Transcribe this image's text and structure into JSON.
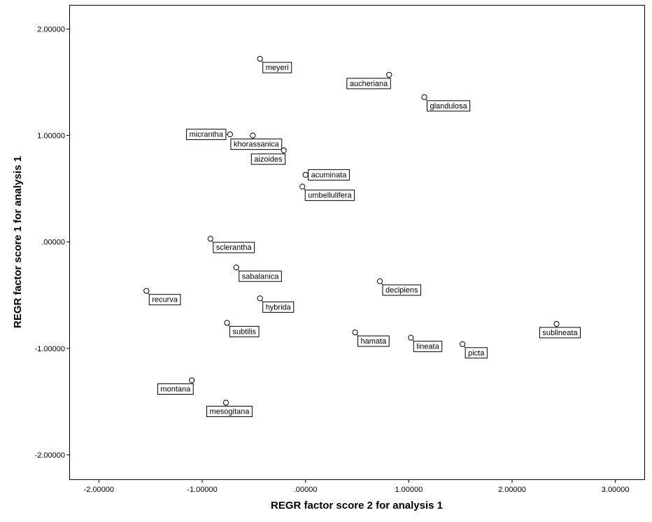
{
  "chart_data": {
    "type": "scatter",
    "title": "",
    "xlabel": "REGR factor score   2 for analysis 1",
    "ylabel": "REGR factor score   1 for analysis 1",
    "xlim": [
      -2.28,
      3.28
    ],
    "ylim": [
      -2.23,
      2.22
    ],
    "xticks": [
      -2,
      -1,
      0,
      1,
      2,
      3
    ],
    "xtick_labels": [
      "-2.00000",
      "-1.00000",
      ".00000",
      "1.00000",
      "2.00000",
      "3.00000"
    ],
    "yticks": [
      -2,
      -1,
      0,
      1,
      2
    ],
    "ytick_labels": [
      "-2.00000",
      "-1.00000",
      ".00000",
      "1.00000",
      "2.00000"
    ],
    "grid": false,
    "points": [
      {
        "label": "meyeri",
        "x": -0.44,
        "y": 1.72,
        "pos": "right-below"
      },
      {
        "label": "aucheriana",
        "x": 0.81,
        "y": 1.57,
        "pos": "left-below"
      },
      {
        "label": "glandulosa",
        "x": 1.15,
        "y": 1.36,
        "pos": "right-below"
      },
      {
        "label": "micrantha",
        "x": -0.73,
        "y": 1.01,
        "pos": "left"
      },
      {
        "label": "khorassanica",
        "x": -0.51,
        "y": 1.0,
        "pos": "center-below"
      },
      {
        "label": "aizoides",
        "x": -0.21,
        "y": 0.86,
        "pos": "left-below"
      },
      {
        "label": "acuminata",
        "x": 0.0,
        "y": 0.63,
        "pos": "right"
      },
      {
        "label": "umbellulifera",
        "x": -0.03,
        "y": 0.52,
        "pos": "right-below"
      },
      {
        "label": "sclerantha",
        "x": -0.92,
        "y": 0.03,
        "pos": "right-below"
      },
      {
        "label": "sabalanica",
        "x": -0.67,
        "y": -0.24,
        "pos": "right-below"
      },
      {
        "label": "recurva",
        "x": -1.54,
        "y": -0.46,
        "pos": "right-below"
      },
      {
        "label": "decipiens",
        "x": 0.72,
        "y": -0.37,
        "pos": "right-below"
      },
      {
        "label": "hybrida",
        "x": -0.44,
        "y": -0.53,
        "pos": "right-below"
      },
      {
        "label": "subtilis",
        "x": -0.76,
        "y": -0.76,
        "pos": "right-below"
      },
      {
        "label": "hamata",
        "x": 0.48,
        "y": -0.85,
        "pos": "right-below"
      },
      {
        "label": "lineata",
        "x": 1.02,
        "y": -0.9,
        "pos": "right-below"
      },
      {
        "label": "picta",
        "x": 1.52,
        "y": -0.96,
        "pos": "right-below"
      },
      {
        "label": "sublineata",
        "x": 2.43,
        "y": -0.77,
        "pos": "center-below"
      },
      {
        "label": "montana",
        "x": -1.1,
        "y": -1.3,
        "pos": "left-below"
      },
      {
        "label": "mesogitana",
        "x": -0.77,
        "y": -1.51,
        "pos": "center-below"
      }
    ]
  }
}
